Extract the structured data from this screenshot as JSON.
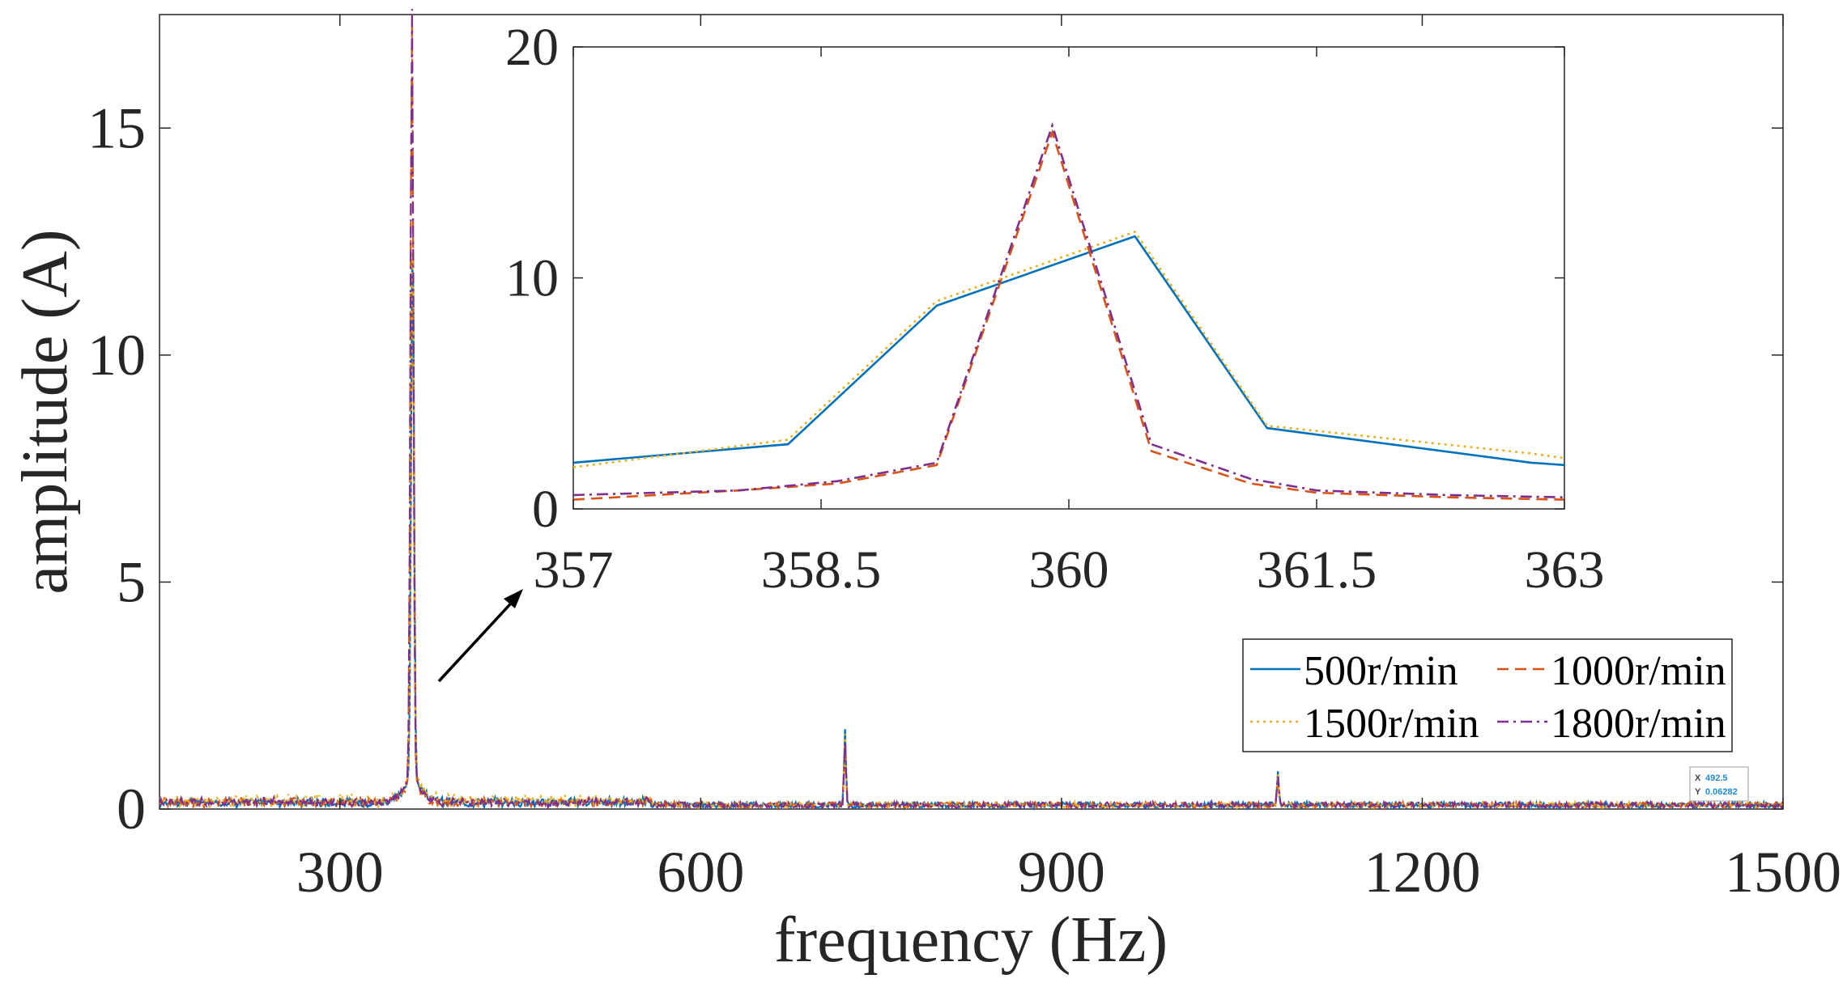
{
  "chart_data": [
    {
      "type": "line",
      "xlabel": "frequency (Hz)",
      "ylabel": "amplitude (A)",
      "xlim": [
        150,
        1500
      ],
      "ylim": [
        0,
        17.5
      ],
      "x_ticks": [
        300,
        600,
        900,
        1200,
        1500
      ],
      "x_tick_labels": [
        "300",
        "600",
        "900",
        "1200",
        "1500"
      ],
      "y_ticks": [
        0,
        5,
        10,
        15
      ],
      "y_tick_labels": [
        "0",
        "5",
        "10",
        "15"
      ],
      "grid": false,
      "legend_position": "lower-right",
      "series": [
        {
          "name": "500r/min",
          "color": "#0072BD",
          "style": "solid",
          "peaks": [
            [
              360.4,
              11.8
            ],
            [
              720,
              1.65
            ],
            [
              1080,
              0.75
            ]
          ]
        },
        {
          "name": "1000r/min",
          "color": "#D95319",
          "style": "dashed",
          "peaks": [
            [
              359.9,
              16.3
            ],
            [
              720,
              1.3
            ],
            [
              1080,
              0.6
            ]
          ]
        },
        {
          "name": "1500r/min",
          "color": "#EDB120",
          "style": "dotted",
          "peaks": [
            [
              360.4,
              12.0
            ],
            [
              720,
              1.55
            ],
            [
              1080,
              0.7
            ]
          ]
        },
        {
          "name": "1800r/min",
          "color": "#7E2F8E",
          "style": "dashdot",
          "peaks": [
            [
              359.9,
              16.6
            ],
            [
              720,
              1.4
            ],
            [
              1080,
              0.65
            ]
          ]
        }
      ],
      "noise_floor": 0.1,
      "datatip": {
        "x_label": "X",
        "x_value": "492.5",
        "y_label": "Y",
        "y_value": "0.06282"
      }
    },
    {
      "type": "line",
      "role": "inset",
      "xlim": [
        357,
        363
      ],
      "ylim": [
        0,
        20
      ],
      "x_ticks": [
        357,
        358.5,
        360,
        361.5,
        363
      ],
      "x_tick_labels": [
        "357",
        "358.5",
        "360",
        "361.5",
        "363"
      ],
      "y_ticks": [
        0,
        10,
        20
      ],
      "y_tick_labels": [
        "0",
        "10",
        "20"
      ],
      "series": [
        {
          "name": "500r/min",
          "x": [
            357,
            358.3,
            359.2,
            360.4,
            361.2,
            362.8,
            363
          ],
          "y": [
            2.0,
            2.8,
            8.8,
            11.8,
            3.5,
            2.0,
            1.9
          ]
        },
        {
          "name": "1000r/min",
          "x": [
            357,
            358.0,
            358.6,
            359.2,
            359.9,
            360.5,
            361.1,
            361.5,
            362.3,
            363
          ],
          "y": [
            0.4,
            0.8,
            1.1,
            1.9,
            16.3,
            2.5,
            1.1,
            0.7,
            0.5,
            0.4
          ]
        },
        {
          "name": "1500r/min",
          "x": [
            357,
            358.3,
            359.2,
            360.4,
            361.2,
            362.8,
            363
          ],
          "y": [
            1.8,
            3.0,
            9.0,
            12.0,
            3.6,
            2.4,
            2.2
          ]
        },
        {
          "name": "1800r/min",
          "x": [
            357,
            358.0,
            358.6,
            359.2,
            359.9,
            360.5,
            361.1,
            361.5,
            362.3,
            363
          ],
          "y": [
            0.6,
            0.8,
            1.2,
            2.0,
            16.6,
            2.8,
            1.3,
            0.8,
            0.6,
            0.5
          ]
        }
      ]
    }
  ]
}
